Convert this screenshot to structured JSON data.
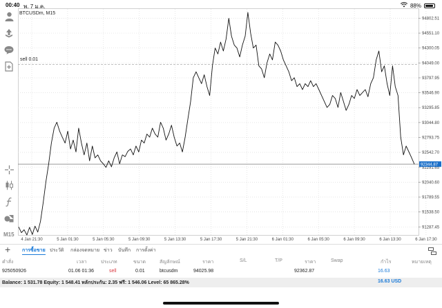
{
  "status_bar": {
    "time": "00:40",
    "date": "พ. 7 ม.ค.",
    "battery": "88%",
    "battery_level": 0.88
  },
  "chart": {
    "symbol": "BTCUSDm, M15",
    "sell_line_label": "sell 0.01",
    "current_price": "92344.87",
    "accent_color": "#1a6fc9",
    "icon_names": [
      "user-icon",
      "trade-icon",
      "chat-icon",
      "new-order-icon",
      "crosshair-icon",
      "candles-icon",
      "indicator-icon",
      "objects-icon"
    ],
    "timeframe": "M15"
  },
  "chart_data": {
    "type": "line",
    "title": "BTCUSDm, M15",
    "xlabel": "",
    "ylabel": "",
    "x_ticks": [
      "4 Jan 21:30",
      "5 Jan 01:30",
      "5 Jan 05:30",
      "5 Jan 09:30",
      "5 Jan 13:30",
      "5 Jan 17:30",
      "5 Jan 21:30",
      "6 Jan 01:30",
      "6 Jan 05:30",
      "6 Jan 09:30",
      "6 Jan 13:30",
      "6 Jan 17:30"
    ],
    "y_ticks": [
      "94802.51",
      "94551.10",
      "94300.05",
      "94049.00",
      "93797.95",
      "93546.90",
      "93295.85",
      "93044.80",
      "92793.75",
      "92542.70",
      "92291.65",
      "92040.60",
      "91789.55",
      "91538.50",
      "91287.45"
    ],
    "ylim": [
      91140,
      94900
    ],
    "sell_level": 94025.98,
    "current_price": 92344.87,
    "grid": true,
    "series": [
      {
        "values": [
          91287,
          91190,
          91240,
          91150,
          91280,
          91160,
          91300,
          91200,
          91380,
          91700,
          92050,
          92350,
          92700,
          92950,
          93050,
          92900,
          92800,
          92700,
          92900,
          92600,
          92750,
          92550,
          92950,
          92700,
          92500,
          92700,
          92400,
          92650,
          92450,
          92500,
          92400,
          92350,
          92290,
          92400,
          92300,
          92450,
          92550,
          92350,
          92500,
          92470,
          92560,
          92600,
          92500,
          92650,
          92550,
          92750,
          92700,
          92850,
          92800,
          92950,
          92850,
          92800,
          93050,
          92950,
          92750,
          92850,
          93000,
          92800,
          92650,
          92700,
          92550,
          92800,
          93100,
          93400,
          93800,
          93900,
          93800,
          93700,
          93850,
          93650,
          93500,
          94000,
          94300,
          94200,
          94400,
          94250,
          94450,
          94800,
          94500,
          94350,
          94300,
          94150,
          94350,
          94500,
          94900,
          94550,
          94300,
          94350,
          94000,
          93950,
          93800,
          94050,
          94200,
          94100,
          94400,
          94350,
          94250,
          94100,
          94000,
          93900,
          93750,
          93800,
          93650,
          93700,
          93600,
          93700,
          93650,
          93750,
          93650,
          93700,
          93600,
          93500,
          93400,
          93300,
          93350,
          93500,
          93450,
          93300,
          93550,
          93400,
          93250,
          93350,
          93500,
          93450,
          93600,
          93500,
          93550,
          93600,
          93480,
          93700,
          93800,
          94100,
          94250,
          93900,
          94000,
          93700,
          93500,
          94000,
          93650,
          93500,
          92800,
          92500,
          92650,
          92550,
          92450,
          92344
        ]
      }
    ]
  },
  "tabs": {
    "items": [
      "การซื้อขาย",
      "ประวัติ",
      "กล่องจดหมาย",
      "ข่าว",
      "บันทึก",
      "การตั้งค่า"
    ],
    "active_index": 0
  },
  "table": {
    "headers": [
      "คำสั่ง",
      "เวลา",
      "ประเภท",
      "ขนาด",
      "สัญลักษณ์",
      "ราคา",
      "S/L",
      "T/P",
      "ราคา",
      "Swap",
      "กำไร",
      "หมายเหตุ"
    ],
    "row": {
      "order": "925050926",
      "time": "01.06 01:36",
      "type": "sell",
      "size": "0.01",
      "symbol": "btcusdm",
      "open_price": "94025.98",
      "sl": "",
      "tp": "",
      "price": "92362.87",
      "swap": "",
      "profit": "16.63",
      "comment": ""
    }
  },
  "balance": {
    "text": "Balance: 1 531.78 Equity: 1 548.41 หลักประกัน: 2.35 ฟรี: 1 546.06 Level: 65 865.28%",
    "profit": "16.63",
    "currency": "USD",
    "profit_currency": "16.63  USD"
  },
  "colors": {
    "sell": "#d9363e",
    "profit": "#1a7ad8",
    "tab_active": "#1a7ad8"
  }
}
